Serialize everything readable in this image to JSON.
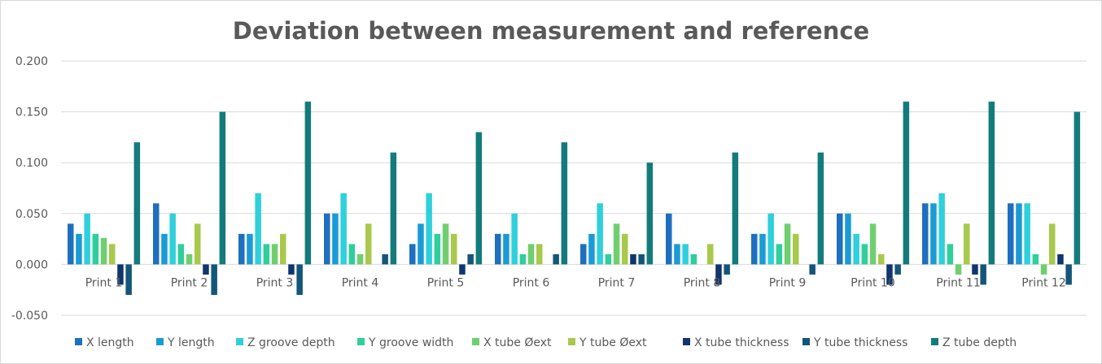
{
  "chart_data": {
    "type": "bar",
    "title": "Deviation between measurement and reference",
    "xlabel": "",
    "ylabel": "",
    "ylim": [
      -0.05,
      0.2
    ],
    "yticks": [
      "0.200",
      "0.150",
      "0.100",
      "0.050",
      "0.000",
      "-0.050"
    ],
    "ytick_values": [
      0.2,
      0.15,
      0.1,
      0.05,
      0.0,
      -0.05
    ],
    "grid": true,
    "legend_position": "bottom",
    "categories": [
      "Print 1",
      "Print 2",
      "Print 3",
      "Print 4",
      "Print 5",
      "Print 6",
      "Print 7",
      "Print 8",
      "Print 9",
      "Print 10",
      "Print 11",
      "Print 12"
    ],
    "series": [
      {
        "name": "X length",
        "color": "#1f6fbf",
        "values": [
          0.04,
          0.06,
          0.03,
          0.05,
          0.02,
          0.03,
          0.02,
          0.05,
          0.03,
          0.05,
          0.06,
          0.06
        ]
      },
      {
        "name": "Y length",
        "color": "#1a9bd6",
        "values": [
          0.03,
          0.03,
          0.03,
          0.05,
          0.04,
          0.03,
          0.03,
          0.02,
          0.03,
          0.05,
          0.06,
          0.06
        ]
      },
      {
        "name": "Z groove depth",
        "color": "#2fd0dc",
        "values": [
          0.05,
          0.05,
          0.07,
          0.07,
          0.07,
          0.05,
          0.06,
          0.02,
          0.05,
          0.03,
          0.07,
          0.06
        ]
      },
      {
        "name": "Y groove width",
        "color": "#2ecf9a",
        "values": [
          0.03,
          0.02,
          0.02,
          0.02,
          0.03,
          0.01,
          0.01,
          0.01,
          0.02,
          0.02,
          0.02,
          0.01
        ]
      },
      {
        "name": "X tube Øext",
        "color": "#6fcf6f",
        "values": [
          0.026,
          0.01,
          0.02,
          0.01,
          0.04,
          0.02,
          0.04,
          0.0,
          0.04,
          0.04,
          -0.01,
          -0.01
        ]
      },
      {
        "name": "Y tube Øext",
        "color": "#a8c94c",
        "values": [
          0.02,
          0.04,
          0.03,
          0.04,
          0.03,
          0.02,
          0.03,
          0.02,
          0.03,
          0.01,
          0.04,
          0.04
        ]
      },
      {
        "name": "X tube thickness",
        "color": "#10356e",
        "values": [
          -0.02,
          -0.01,
          -0.01,
          0.0,
          -0.01,
          0.0,
          0.01,
          -0.02,
          0.0,
          -0.02,
          -0.01,
          0.01
        ]
      },
      {
        "name": "Y tube thickness",
        "color": "#14567a",
        "values": [
          -0.03,
          -0.03,
          -0.03,
          0.01,
          0.01,
          0.01,
          0.01,
          -0.01,
          -0.01,
          -0.01,
          -0.02,
          -0.02
        ]
      },
      {
        "name": "Z tube depth",
        "color": "#137b7b",
        "values": [
          0.12,
          0.15,
          0.16,
          0.11,
          0.13,
          0.12,
          0.1,
          0.11,
          0.11,
          0.16,
          0.16,
          0.15
        ]
      }
    ]
  }
}
